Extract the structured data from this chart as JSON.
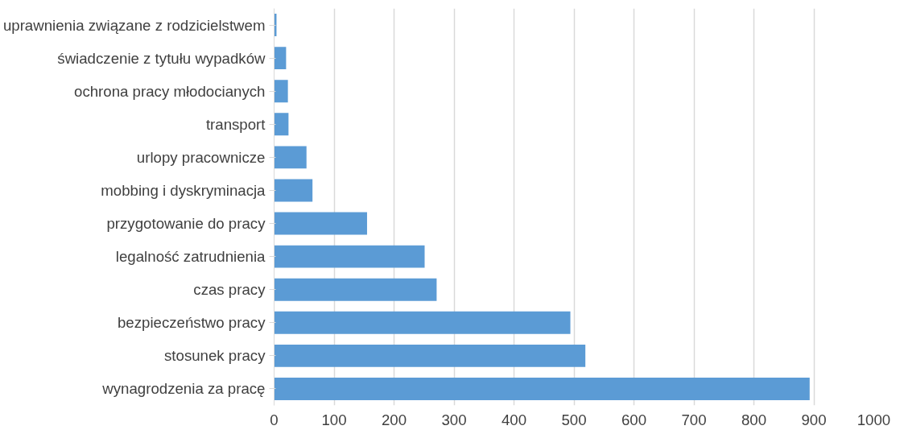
{
  "chart_data": {
    "type": "bar",
    "orientation": "horizontal",
    "categories": [
      "uprawnienia związane z rodzicielstwem",
      "świadczenie z tytułu wypadków",
      "ochrona pracy młodocianych",
      "transport",
      "urlopy pracownicze",
      "mobbing i dyskryminacja",
      "przygotowanie do pracy",
      "legalność zatrudnienia",
      "czas pracy",
      "bezpieczeństwo pracy",
      "stosunek pracy",
      "wynagrodzenia za pracę"
    ],
    "values": [
      4,
      20,
      23,
      24,
      54,
      64,
      155,
      251,
      271,
      494,
      519,
      893
    ],
    "color": "#5b9bd5",
    "xlim": [
      0,
      1000
    ],
    "xticks": [
      0,
      100,
      200,
      300,
      400,
      500,
      600,
      700,
      800,
      900,
      1000
    ],
    "grid": "x"
  }
}
